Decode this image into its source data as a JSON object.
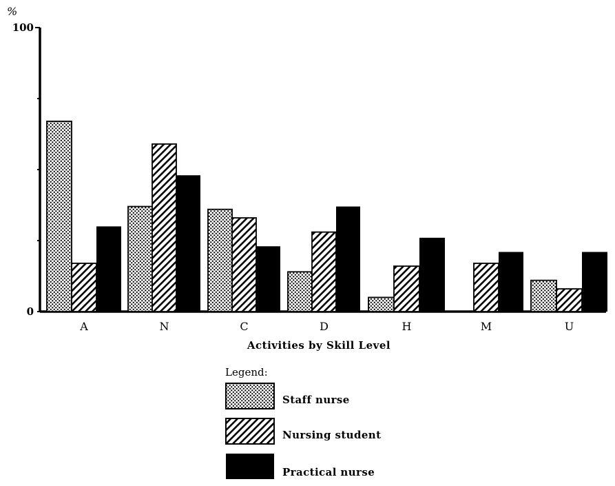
{
  "chart_data": {
    "type": "bar",
    "title": "",
    "y_unit": "%",
    "xlabel": "Activities by Skill Level",
    "ylabel": "",
    "ylim": [
      0,
      100
    ],
    "y_tick_labels": [
      "0",
      "100"
    ],
    "y_ticks": [
      0,
      25,
      50,
      75,
      100
    ],
    "categories": [
      "A",
      "N",
      "C",
      "D",
      "H",
      "M",
      "U"
    ],
    "series": [
      {
        "name": "Staff nurse",
        "pattern": "dots",
        "values": [
          67,
          37,
          36,
          14,
          5,
          0,
          11
        ]
      },
      {
        "name": "Nursing student",
        "pattern": "hatch",
        "values": [
          17,
          59,
          33,
          28,
          16,
          17,
          8
        ]
      },
      {
        "name": "Practical nurse",
        "pattern": "solid",
        "values": [
          30,
          48,
          23,
          37,
          26,
          21,
          21
        ]
      }
    ],
    "grid": false,
    "legend": {
      "title": "Legend:",
      "placement": "bottom-center"
    }
  }
}
